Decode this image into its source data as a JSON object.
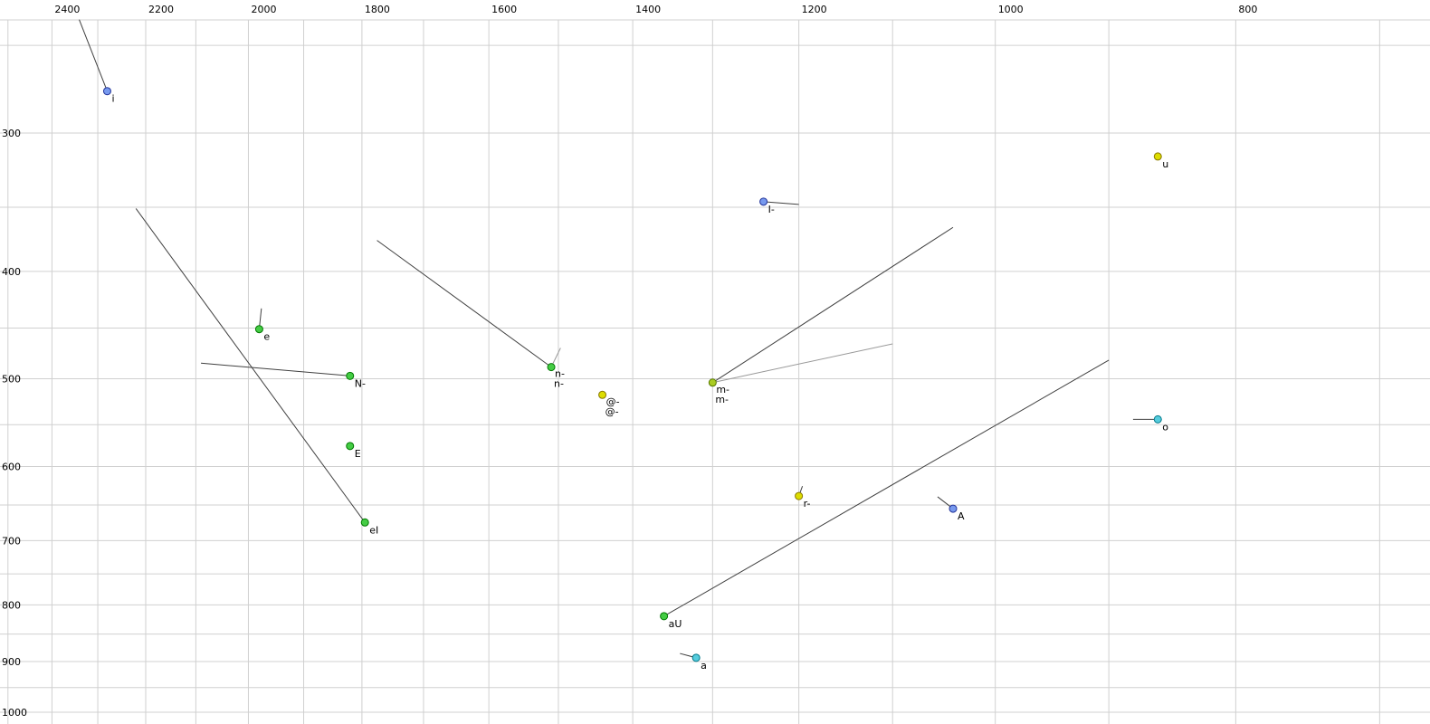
{
  "chart_data": {
    "type": "scatter",
    "title": "",
    "x_axis": {
      "ticks": [
        2400,
        2200,
        2000,
        1800,
        1600,
        1400,
        1200,
        1000,
        800
      ],
      "scale": "log",
      "reversed": true,
      "grid_step": 100,
      "grid_min": 700,
      "grid_max": 2500
    },
    "y_axis": {
      "ticks": [
        300,
        400,
        500,
        600,
        700,
        800,
        900,
        1000
      ],
      "scale": "log",
      "grid_step": 50,
      "grid_min": 250,
      "grid_max": 1000
    },
    "grid": true,
    "background_color": "#ffffff",
    "grid_color": "#d0d0d0",
    "tail_color": "#404040",
    "grey_color": "#999999",
    "colors": {
      "green": {
        "fill": "#44cc44",
        "stroke": "#007700"
      },
      "yellow": {
        "fill": "#dddd00",
        "stroke": "#887700"
      },
      "yellowgreen": {
        "fill": "#aacc22",
        "stroke": "#557700"
      },
      "cyan": {
        "fill": "#55ccdd",
        "stroke": "#007788"
      },
      "blue": {
        "fill": "#7799ee",
        "stroke": "#223399"
      }
    },
    "points": [
      {
        "label": "i",
        "f2": 2280,
        "f1": 275,
        "color": "blue",
        "tails": [
          {
            "f2": 2340,
            "f1": 237
          }
        ]
      },
      {
        "label": "u",
        "f2": 860,
        "f1": 315,
        "color": "yellow"
      },
      {
        "label": "I-",
        "f2": 1240,
        "f1": 346,
        "color": "blue",
        "tails": [
          {
            "f2": 1200,
            "f1": 348
          }
        ]
      },
      {
        "label": "e",
        "f2": 1980,
        "f1": 451,
        "color": "green",
        "tails": [
          {
            "f2": 1976,
            "f1": 432
          }
        ]
      },
      {
        "label": "N-",
        "f2": 1820,
        "f1": 497,
        "color": "green",
        "tails": [
          {
            "f2": 2090,
            "f1": 484
          }
        ]
      },
      {
        "label": "n-",
        "f2": 1510,
        "f1": 488,
        "color": "green",
        "grey_label": true,
        "tails": [
          {
            "f2": 1775,
            "f1": 375
          },
          {
            "f2": 1497,
            "f1": 469,
            "grey": true
          }
        ]
      },
      {
        "label": "@-",
        "f2": 1440,
        "f1": 517,
        "color": "yellow",
        "grey_label": true
      },
      {
        "label": "m-",
        "f2": 1300,
        "f1": 504,
        "color": "yellowgreen",
        "grey_label": true,
        "tails": [
          {
            "f2": 1040,
            "f1": 365
          },
          {
            "f2": 1100,
            "f1": 465,
            "grey": true
          }
        ]
      },
      {
        "label": "o",
        "f2": 860,
        "f1": 544,
        "color": "cyan",
        "tails": [
          {
            "f2": 880,
            "f1": 544
          }
        ]
      },
      {
        "label": "E",
        "f2": 1820,
        "f1": 575,
        "color": "green"
      },
      {
        "label": "r-",
        "f2": 1200,
        "f1": 638,
        "color": "yellow",
        "tails": [
          {
            "f2": 1196,
            "f1": 625
          }
        ]
      },
      {
        "label": "A",
        "f2": 1040,
        "f1": 655,
        "color": "blue",
        "tails": [
          {
            "f2": 1055,
            "f1": 639
          }
        ]
      },
      {
        "label": "eI",
        "f2": 1795,
        "f1": 674,
        "color": "green",
        "tails": [
          {
            "f2": 2220,
            "f1": 351
          }
        ]
      },
      {
        "label": "aU",
        "f2": 1360,
        "f1": 819,
        "color": "green",
        "tails": [
          {
            "f2": 900,
            "f1": 481
          }
        ]
      },
      {
        "label": "a",
        "f2": 1320,
        "f1": 893,
        "color": "cyan",
        "tails": [
          {
            "f2": 1340,
            "f1": 885
          }
        ]
      }
    ]
  }
}
